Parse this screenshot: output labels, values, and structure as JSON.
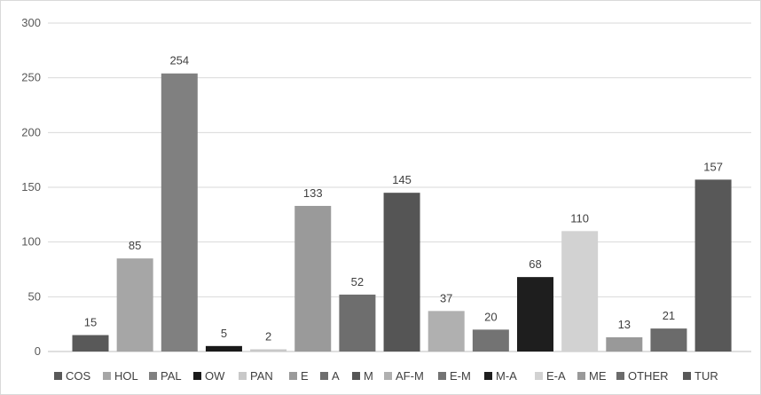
{
  "chart_data": {
    "type": "bar",
    "title": "",
    "xlabel": "",
    "ylabel": "",
    "ylim": [
      0,
      300
    ],
    "yticks": [
      0,
      50,
      100,
      150,
      200,
      250,
      300
    ],
    "grid": true,
    "legend_position": "bottom",
    "categories": [
      "COS",
      "HOL",
      "PAL",
      "OW",
      "PAN",
      "E",
      "A",
      "M",
      "AF-M",
      "E-M",
      "M-A",
      "E-A",
      "ME",
      "OTHER",
      "TUR"
    ],
    "values": [
      15,
      85,
      254,
      5,
      2,
      133,
      52,
      145,
      37,
      20,
      68,
      110,
      13,
      21,
      157
    ],
    "colors": [
      "#595959",
      "#a6a6a6",
      "#808080",
      "#1a1a1a",
      "#c8c8c8",
      "#9a9a9a",
      "#6e6e6e",
      "#555555",
      "#b0b0b0",
      "#737373",
      "#1e1e1e",
      "#d2d2d2",
      "#999999",
      "#6b6b6b",
      "#585858"
    ]
  }
}
